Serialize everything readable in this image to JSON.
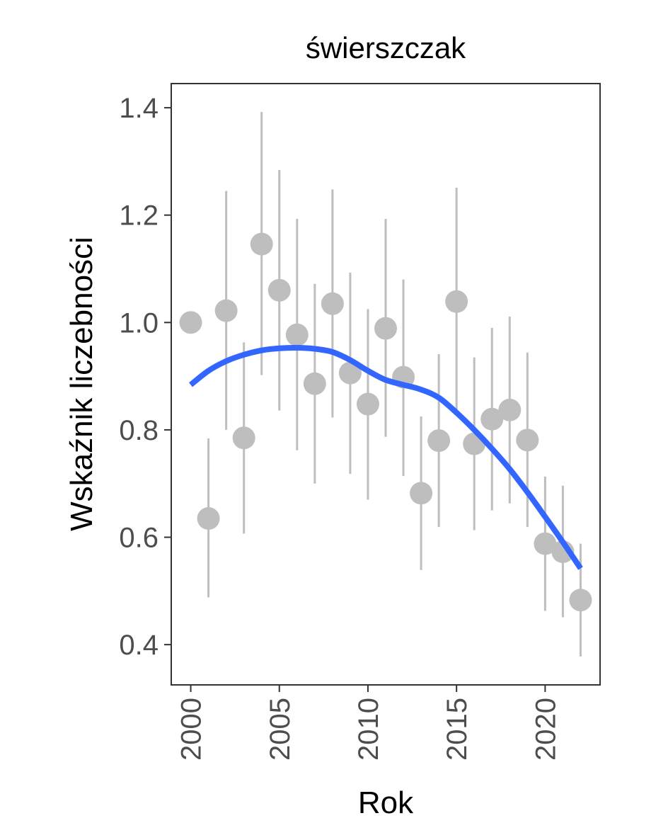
{
  "chart_data": {
    "type": "scatter",
    "title": "świerszczak",
    "xlabel": "Rok",
    "ylabel": "Wskaźnik liczebności",
    "xlim": [
      1998.9,
      2023.1
    ],
    "ylim": [
      0.325,
      1.445
    ],
    "x_ticks": [
      2000,
      2005,
      2010,
      2015,
      2020
    ],
    "y_ticks": [
      0.4,
      0.6,
      0.8,
      1.0,
      1.2,
      1.4
    ],
    "y_tick_labels": [
      "0.4",
      "0.6",
      "0.8",
      "1.0",
      "1.2",
      "1.4"
    ],
    "grid": false,
    "legend": "none",
    "colors": {
      "points": "#bebebe",
      "error_bars": "#bebebe",
      "trend": "#3366ff",
      "frame": "#333333"
    },
    "points": [
      {
        "x": 2000,
        "y": 1.0,
        "lower": null,
        "upper": null
      },
      {
        "x": 2001,
        "y": 0.635,
        "lower": 0.488,
        "upper": 0.784
      },
      {
        "x": 2002,
        "y": 1.022,
        "lower": 0.8,
        "upper": 1.245
      },
      {
        "x": 2003,
        "y": 0.785,
        "lower": 0.607,
        "upper": 0.963
      },
      {
        "x": 2004,
        "y": 1.146,
        "lower": 0.902,
        "upper": 1.392
      },
      {
        "x": 2005,
        "y": 1.06,
        "lower": 0.836,
        "upper": 1.284
      },
      {
        "x": 2006,
        "y": 0.977,
        "lower": 0.762,
        "upper": 1.193
      },
      {
        "x": 2007,
        "y": 0.886,
        "lower": 0.7,
        "upper": 1.072
      },
      {
        "x": 2008,
        "y": 1.035,
        "lower": 0.823,
        "upper": 1.248
      },
      {
        "x": 2009,
        "y": 0.906,
        "lower": 0.718,
        "upper": 1.093
      },
      {
        "x": 2010,
        "y": 0.848,
        "lower": 0.67,
        "upper": 1.025
      },
      {
        "x": 2011,
        "y": 0.989,
        "lower": 0.787,
        "upper": 1.193
      },
      {
        "x": 2012,
        "y": 0.898,
        "lower": 0.714,
        "upper": 1.08
      },
      {
        "x": 2013,
        "y": 0.682,
        "lower": 0.539,
        "upper": 0.825
      },
      {
        "x": 2014,
        "y": 0.78,
        "lower": 0.619,
        "upper": 0.941
      },
      {
        "x": 2015,
        "y": 1.039,
        "lower": 0.827,
        "upper": 1.251
      },
      {
        "x": 2016,
        "y": 0.774,
        "lower": 0.613,
        "upper": 0.935
      },
      {
        "x": 2017,
        "y": 0.82,
        "lower": 0.65,
        "upper": 0.99
      },
      {
        "x": 2018,
        "y": 0.837,
        "lower": 0.663,
        "upper": 1.011
      },
      {
        "x": 2019,
        "y": 0.781,
        "lower": 0.619,
        "upper": 0.944
      },
      {
        "x": 2020,
        "y": 0.588,
        "lower": 0.463,
        "upper": 0.713
      },
      {
        "x": 2021,
        "y": 0.573,
        "lower": 0.451,
        "upper": 0.696
      },
      {
        "x": 2022,
        "y": 0.483,
        "lower": 0.378,
        "upper": 0.588
      }
    ],
    "trend": {
      "x": [
        2000,
        2001,
        2002,
        2003,
        2004,
        2005,
        2006,
        2007,
        2008,
        2009,
        2010,
        2011,
        2012,
        2013,
        2014,
        2015,
        2016,
        2017,
        2018,
        2019,
        2020,
        2021,
        2022
      ],
      "y": [
        0.884,
        0.91,
        0.928,
        0.94,
        0.948,
        0.952,
        0.953,
        0.951,
        0.945,
        0.93,
        0.91,
        0.893,
        0.884,
        0.875,
        0.86,
        0.832,
        0.8,
        0.765,
        0.727,
        0.684,
        0.638,
        0.591,
        0.542
      ]
    }
  }
}
